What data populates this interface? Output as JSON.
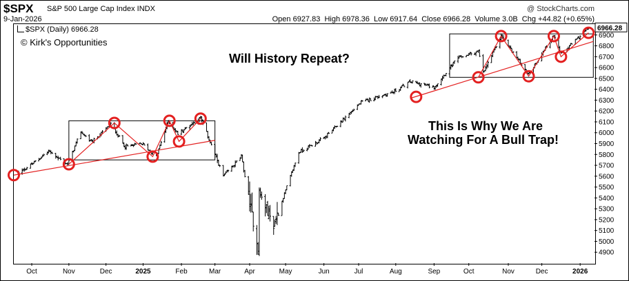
{
  "header": {
    "ticker": "$SPX",
    "index_name": "S&P 500 Large Cap Index INDX",
    "source": "@ StockCharts.com",
    "date": "9-Jan-2026",
    "open_label": "Open",
    "open": "6927.83",
    "high_label": "High",
    "high": "6978.36",
    "low_label": "Low",
    "low": "6917.64",
    "close_label": "Close",
    "close": "6966.28",
    "volume_label": "Volume",
    "volume": "3.0B",
    "chg_label": "Chg",
    "chg": "+44.82 (+0.65%)"
  },
  "legend": "$SPX (Daily) 6966.28",
  "copyright": "© Kirk's Opportunities",
  "annotations": {
    "title": "Will History Repeat?",
    "line1": "This Is Why We Are",
    "line2": "Watching For A Bull Trap!"
  },
  "chart_data": {
    "type": "bar",
    "series": [
      {
        "name": "$SPX",
        "ohlc_anchors": [
          [
            "2024-09-20",
            5630
          ],
          [
            "2024-10-01",
            5710
          ],
          [
            "2024-10-15",
            5830
          ],
          [
            "2024-10-31",
            5710
          ],
          [
            "2024-11-11",
            6010
          ],
          [
            "2024-11-20",
            5910
          ],
          [
            "2024-12-06",
            6080
          ],
          [
            "2024-12-18",
            5870
          ],
          [
            "2025-01-01",
            5900
          ],
          [
            "2025-01-13",
            5780
          ],
          [
            "2025-01-23",
            6110
          ],
          [
            "2025-01-31",
            5990
          ],
          [
            "2025-02-19",
            6140
          ],
          [
            "2025-03-10",
            5600
          ],
          [
            "2025-03-25",
            5780
          ],
          [
            "2025-04-08",
            4940
          ],
          [
            "2025-04-09",
            5450
          ],
          [
            "2025-04-21",
            5150
          ],
          [
            "2025-05-12",
            5820
          ],
          [
            "2025-06-02",
            5950
          ],
          [
            "2025-07-03",
            6280
          ],
          [
            "2025-07-31",
            6380
          ],
          [
            "2025-08-13",
            6470
          ],
          [
            "2025-09-02",
            6420
          ],
          [
            "2025-09-22",
            6690
          ],
          [
            "2025-10-09",
            6750
          ],
          [
            "2025-10-13",
            6550
          ],
          [
            "2025-10-28",
            6890
          ],
          [
            "2025-11-20",
            6540
          ],
          [
            "2025-12-11",
            6900
          ],
          [
            "2025-12-17",
            6720
          ],
          [
            "2026-01-09",
            6966.28
          ]
        ]
      }
    ],
    "x_ticks": [
      "Oct",
      "Nov",
      "Dec",
      "2025",
      "Feb",
      "Mar",
      "Apr",
      "May",
      "Jun",
      "Jul",
      "Aug",
      "Sep",
      "Oct",
      "Nov",
      "Dec",
      "2026"
    ],
    "x_tick_dates": [
      "2024-10-01",
      "2024-11-01",
      "2024-12-02",
      "2025-01-02",
      "2025-02-03",
      "2025-03-03",
      "2025-04-01",
      "2025-05-01",
      "2025-06-02",
      "2025-07-01",
      "2025-08-01",
      "2025-09-02",
      "2025-10-01",
      "2025-11-03",
      "2025-12-01",
      "2026-01-02"
    ],
    "y_ticks": [
      4900,
      5000,
      5100,
      5200,
      5300,
      5400,
      5500,
      5600,
      5700,
      5800,
      5900,
      6000,
      6100,
      6200,
      6300,
      6400,
      6500,
      6600,
      6700,
      6800,
      6900
    ],
    "xlim": [
      "2024-09-16",
      "2026-01-14"
    ],
    "ylim": [
      4800,
      7000
    ],
    "y_scale": "linear",
    "last_value_label": "6966.28",
    "boxes": [
      {
        "x0": "2024-11-01",
        "x1": "2025-03-03",
        "y0": 5750,
        "y1": 6110
      },
      {
        "x0": "2025-09-15",
        "x1": "2026-01-13",
        "y0": 6510,
        "y1": 6910
      }
    ],
    "trendlines": [
      {
        "points": [
          [
            "2024-09-16",
            5610
          ],
          [
            "2025-03-03",
            5930
          ]
        ]
      },
      {
        "points": [
          [
            "2025-08-14",
            6320
          ],
          [
            "2026-01-13",
            6840
          ]
        ]
      }
    ],
    "zigzags": [
      {
        "points": [
          [
            "2024-11-01",
            5710
          ],
          [
            "2024-12-09",
            6090
          ],
          [
            "2025-01-10",
            5780
          ],
          [
            "2025-01-24",
            6110
          ],
          [
            "2025-02-01",
            5920
          ],
          [
            "2025-02-19",
            6130
          ]
        ]
      },
      {
        "points": [
          [
            "2025-10-09",
            6510
          ],
          [
            "2025-10-28",
            6890
          ],
          [
            "2025-11-20",
            6520
          ],
          [
            "2025-12-11",
            6890
          ],
          [
            "2025-12-17",
            6700
          ],
          [
            "2026-01-09",
            6920
          ]
        ]
      }
    ],
    "circles": [
      [
        "2024-09-16",
        5610
      ],
      [
        "2024-11-01",
        5710
      ],
      [
        "2024-12-09",
        6090
      ],
      [
        "2025-01-10",
        5780
      ],
      [
        "2025-01-24",
        6110
      ],
      [
        "2025-02-01",
        5920
      ],
      [
        "2025-02-19",
        6130
      ],
      [
        "2025-08-18",
        6330
      ],
      [
        "2025-10-09",
        6510
      ],
      [
        "2025-10-28",
        6890
      ],
      [
        "2025-11-20",
        6520
      ],
      [
        "2025-12-11",
        6890
      ],
      [
        "2025-12-17",
        6700
      ],
      [
        "2026-01-09",
        6920
      ]
    ],
    "colors": {
      "bars": "#000000",
      "annotation": "#e32020",
      "box": "#000000"
    },
    "grid": false,
    "legend_position": "top-left"
  }
}
